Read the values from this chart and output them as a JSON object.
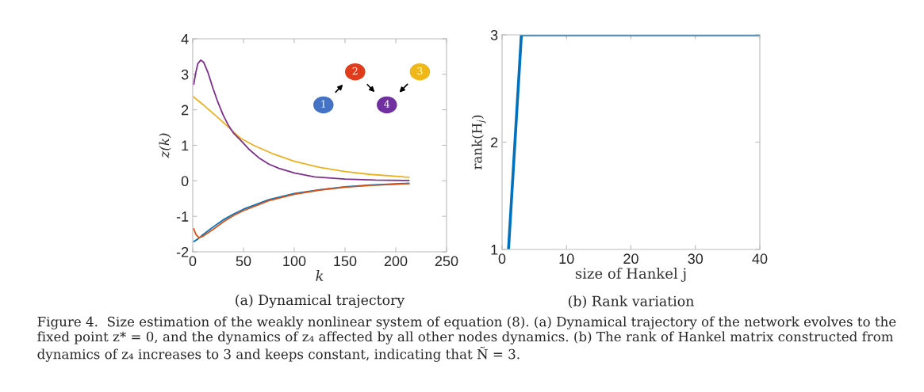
{
  "chart_data": [
    {
      "type": "line",
      "title": "(a) Dynamical trajectory",
      "xlabel": "k",
      "ylabel": "z(k)",
      "xlim": [
        0,
        250
      ],
      "ylim": [
        -2,
        4
      ],
      "xticks": [
        0,
        50,
        100,
        150,
        200,
        250
      ],
      "yticks": [
        {
          "value": -2,
          "label": "-2"
        },
        {
          "value": -1,
          "label": "-1"
        },
        0,
        1,
        2,
        3,
        4
      ],
      "grid": false,
      "legend": false,
      "annotations": [
        "1",
        "2",
        "3",
        "4"
      ],
      "series": [
        {
          "color": "#0072bd",
          "x": [
            1,
            5,
            10,
            20,
            30,
            40,
            50,
            75,
            100,
            125,
            150,
            175,
            213
          ],
          "values": [
            -1.71,
            -1.64,
            -1.52,
            -1.3,
            -1.1,
            -0.94,
            -0.8,
            -0.53,
            -0.36,
            -0.25,
            -0.17,
            -0.12,
            -0.07
          ]
        },
        {
          "color": "#d95319",
          "x": [
            1,
            3,
            6,
            10,
            20,
            30,
            40,
            50,
            75,
            100,
            125,
            150,
            175,
            213
          ],
          "values": [
            -1.35,
            -1.5,
            -1.6,
            -1.56,
            -1.37,
            -1.16,
            -0.98,
            -0.84,
            -0.56,
            -0.38,
            -0.26,
            -0.18,
            -0.13,
            -0.08
          ]
        },
        {
          "color": "#edb120",
          "x": [
            1,
            10,
            20,
            30,
            40,
            47,
            60,
            80,
            100,
            125,
            150,
            175,
            213
          ],
          "values": [
            2.36,
            2.15,
            1.9,
            1.65,
            1.38,
            1.2,
            1.0,
            0.75,
            0.55,
            0.38,
            0.26,
            0.18,
            0.1
          ]
        },
        {
          "color": "#7e2f8e",
          "x": [
            1,
            3,
            5,
            8,
            11,
            15,
            20,
            25,
            30,
            35,
            40,
            47,
            55,
            65,
            75,
            85,
            100,
            120,
            150,
            180,
            213
          ],
          "values": [
            2.72,
            3.05,
            3.3,
            3.4,
            3.33,
            3.05,
            2.6,
            2.2,
            1.85,
            1.57,
            1.35,
            1.15,
            0.9,
            0.65,
            0.47,
            0.35,
            0.22,
            0.11,
            0.05,
            0.02,
            0.01
          ]
        }
      ]
    },
    {
      "type": "line",
      "title": "(b) Rank variation",
      "xlabel": "size of Hankel j",
      "ylabel": "rank(H$_{j}$)",
      "xlim": [
        0,
        40
      ],
      "ylim": [
        1,
        3
      ],
      "xticks": [
        0,
        10,
        20,
        30,
        40
      ],
      "yticks": [
        1,
        2,
        3
      ],
      "grid": false,
      "legend": false,
      "annotations": [
        "Figure 4.  Size estimation of the weakly nonlinear system of equation (8). (a) Dynamical trajectory of the network evolves to the fixed point z* = 0, and the dynamics of z₄ affected by all other nodes dynamics. (b) The rank of Hankel matrix constructed from dynamics of z₄ increases to 3 and keeps constant, indicating that Ñ = 3."
      ],
      "series": [
        {
          "color": "#0072bd",
          "x": [
            1,
            2,
            3,
            4,
            5,
            6,
            7,
            8,
            9,
            10,
            11,
            12,
            13,
            14,
            15,
            16,
            17,
            18,
            19,
            20,
            21,
            22,
            23,
            24,
            25,
            26,
            27,
            28,
            29,
            30,
            31,
            32,
            33,
            34,
            35,
            36,
            37,
            38,
            39,
            40
          ],
          "values": [
            1,
            2,
            3,
            3,
            3,
            3,
            3,
            3,
            3,
            3,
            3,
            3,
            3,
            3,
            3,
            3,
            3,
            3,
            3,
            3,
            3,
            3,
            3,
            3,
            3,
            3,
            3,
            3,
            3,
            3,
            3,
            3,
            3,
            3,
            3,
            3,
            3,
            3,
            3,
            3
          ]
        }
      ]
    }
  ]
}
